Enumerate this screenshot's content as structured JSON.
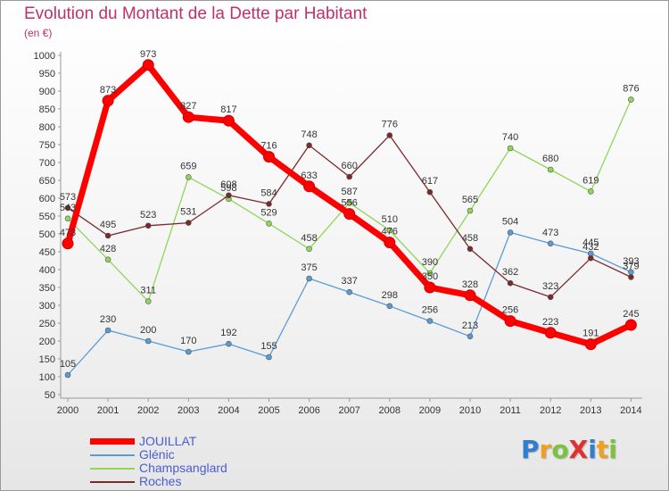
{
  "chart_data": {
    "type": "line",
    "title": "Evolution du Montant de la Dette par Habitant",
    "subtitle": "(en €)",
    "x": [
      "2000",
      "2001",
      "2002",
      "2003",
      "2004",
      "2005",
      "2006",
      "2007",
      "2008",
      "2009",
      "2010",
      "2011",
      "2012",
      "2013",
      "2014"
    ],
    "ylim": [
      50,
      1000
    ],
    "yticks": [
      50,
      100,
      150,
      200,
      250,
      300,
      350,
      400,
      450,
      500,
      550,
      600,
      650,
      700,
      750,
      800,
      850,
      900,
      950,
      1000
    ],
    "grid": false,
    "legend_position": "bottom-left",
    "series": [
      {
        "name": "JOUILLAT",
        "color": "#ff0000",
        "values": [
          473,
          873,
          973,
          827,
          817,
          716,
          633,
          556,
          476,
          350,
          328,
          256,
          223,
          191,
          245
        ]
      },
      {
        "name": "Glénic",
        "color": "#5b9bd5",
        "values": [
          105,
          230,
          200,
          170,
          192,
          155,
          375,
          337,
          298,
          256,
          213,
          504,
          473,
          445,
          393
        ]
      },
      {
        "name": "Champsanglard",
        "color": "#8fd65a",
        "values": [
          543,
          428,
          311,
          659,
          598,
          529,
          458,
          587,
          510,
          390,
          565,
          740,
          680,
          619,
          876
        ]
      },
      {
        "name": "Roches",
        "color": "#7a2a2a",
        "values": [
          573,
          495,
          523,
          531,
          608,
          584,
          748,
          660,
          776,
          617,
          458,
          362,
          323,
          432,
          379
        ]
      }
    ]
  },
  "logo": {
    "text": "ProXiti",
    "letters": [
      "P",
      "r",
      "o",
      "X",
      "i",
      "t",
      "i"
    ],
    "colors": [
      "#2f7fd1",
      "#f0a020",
      "#7cc240",
      "#e03030",
      "#2f7fd1",
      "#f0a020",
      "#7cc240"
    ]
  }
}
